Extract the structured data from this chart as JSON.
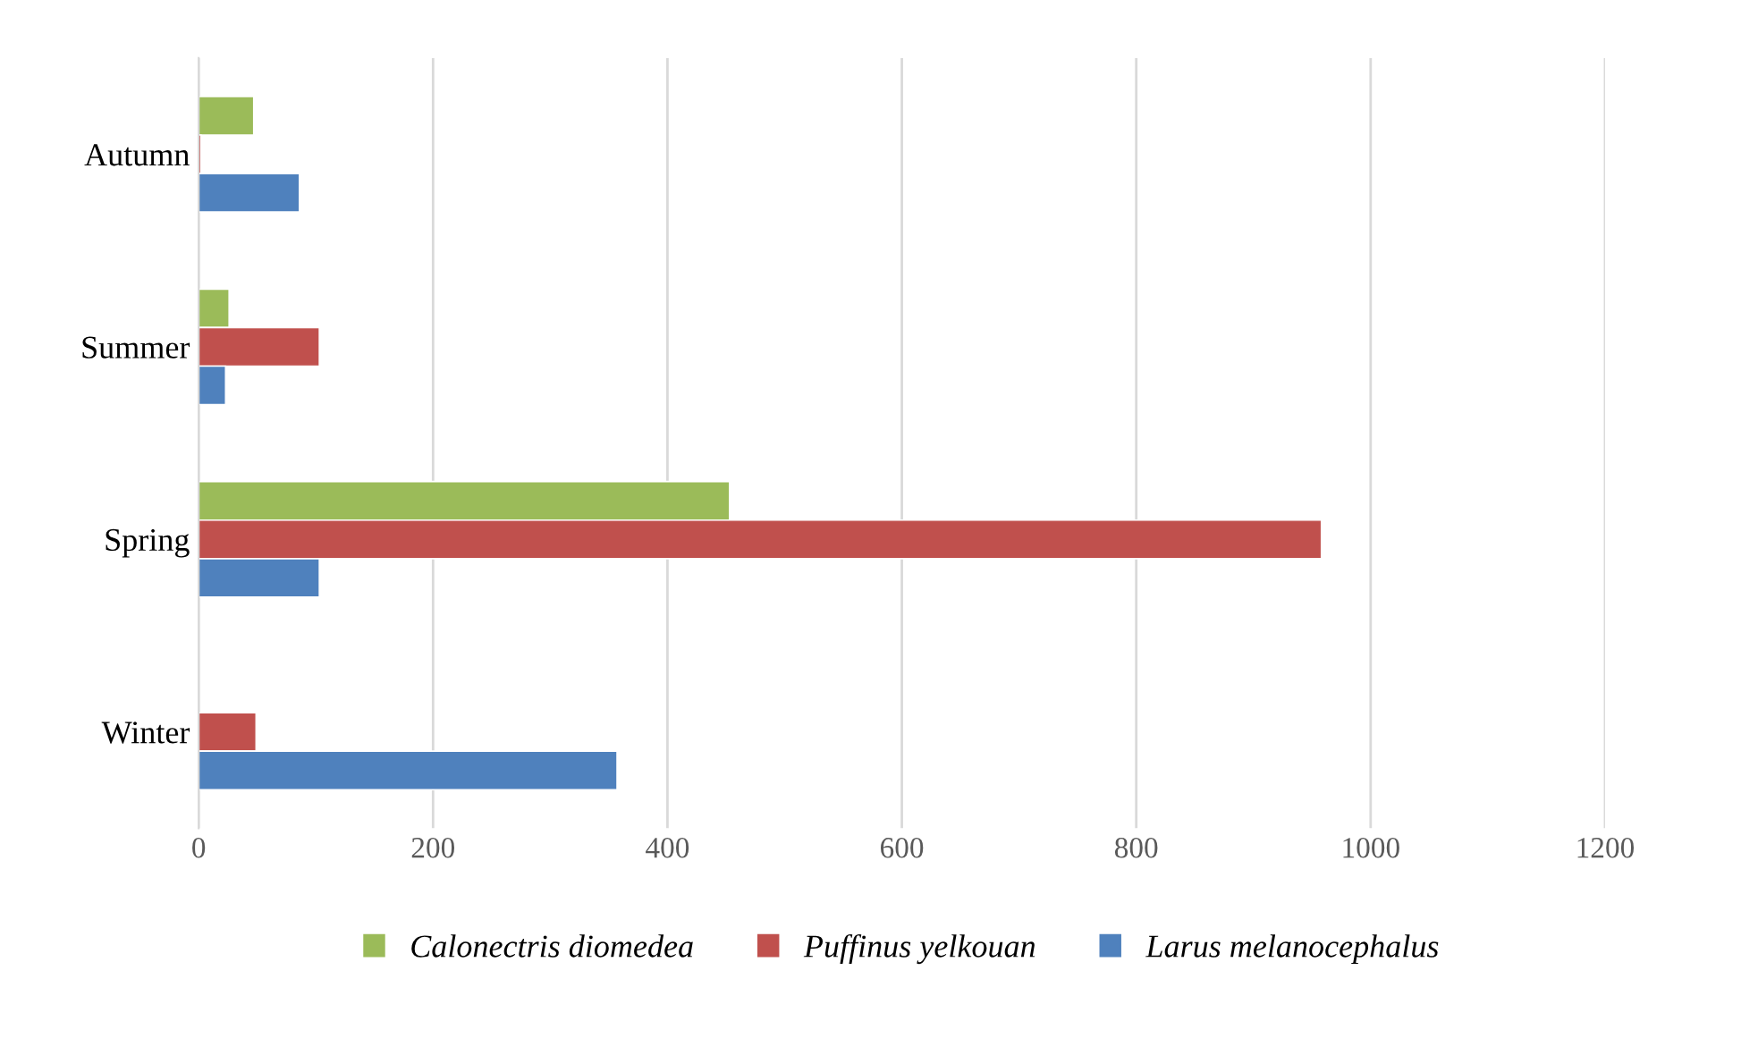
{
  "chart_data": {
    "type": "bar",
    "orientation": "horizontal",
    "categories": [
      "Autumn",
      "Summer",
      "Spring",
      "Winter"
    ],
    "series": [
      {
        "name": "Calonectris diomedea",
        "color": "#9bbb59",
        "values": [
          47,
          26,
          453,
          null
        ]
      },
      {
        "name": "Puffinus yelkouan",
        "color": "#c0504d",
        "values": [
          2,
          103,
          958,
          49
        ]
      },
      {
        "name": "Larus melanocephalus",
        "color": "#4f81bd",
        "values": [
          86,
          23,
          103,
          357
        ]
      }
    ],
    "xlim": [
      0,
      1200
    ],
    "xticks": [
      0,
      200,
      400,
      600,
      800,
      1000,
      1200
    ],
    "grid": "x",
    "legend": "bottom"
  }
}
